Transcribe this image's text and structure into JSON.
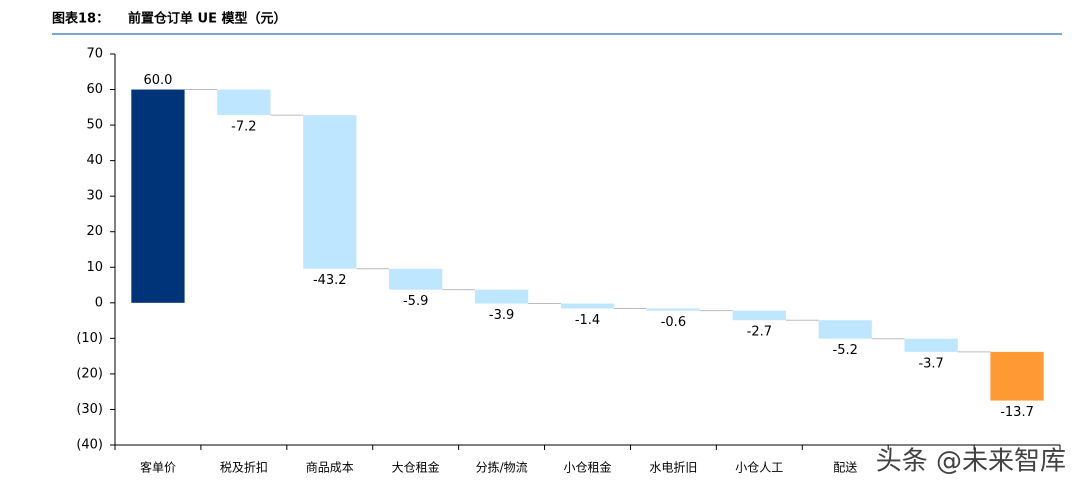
{
  "chart_data": {
    "type": "waterfall",
    "figure_label": "图表18：",
    "title": "前置仓订单 UE 模型（元）",
    "categories": [
      "客单价",
      "税及折扣",
      "商品成本",
      "大仓租金",
      "分拣/物流",
      "小仓租金",
      "水电折旧",
      "小仓人工",
      "配送",
      null,
      null
    ],
    "values": [
      60.0,
      -7.2,
      -43.2,
      -5.9,
      -3.9,
      -1.4,
      -0.6,
      -2.7,
      -5.2,
      -3.7,
      -13.7
    ],
    "value_labels": [
      "60.0",
      "-7.2",
      "-43.2",
      "-5.9",
      "-3.9",
      "-1.4",
      "-0.6",
      "-2.7",
      "-5.2",
      "-3.7",
      "-13.7"
    ],
    "colors": [
      "#003478",
      "#bfe6ff",
      "#bfe6ff",
      "#bfe6ff",
      "#bfe6ff",
      "#bfe6ff",
      "#bfe6ff",
      "#bfe6ff",
      "#bfe6ff",
      "#bfe6ff",
      "#ff9933"
    ],
    "ylim": [
      -40,
      70
    ],
    "yticks": [
      {
        "value": -40,
        "label": "(40)"
      },
      {
        "value": -30,
        "label": "(30)"
      },
      {
        "value": -20,
        "label": "(20)"
      },
      {
        "value": -10,
        "label": "(10)"
      },
      0,
      10,
      20,
      30,
      40,
      50,
      60,
      70
    ],
    "watermark": "头条 @未来智库"
  }
}
